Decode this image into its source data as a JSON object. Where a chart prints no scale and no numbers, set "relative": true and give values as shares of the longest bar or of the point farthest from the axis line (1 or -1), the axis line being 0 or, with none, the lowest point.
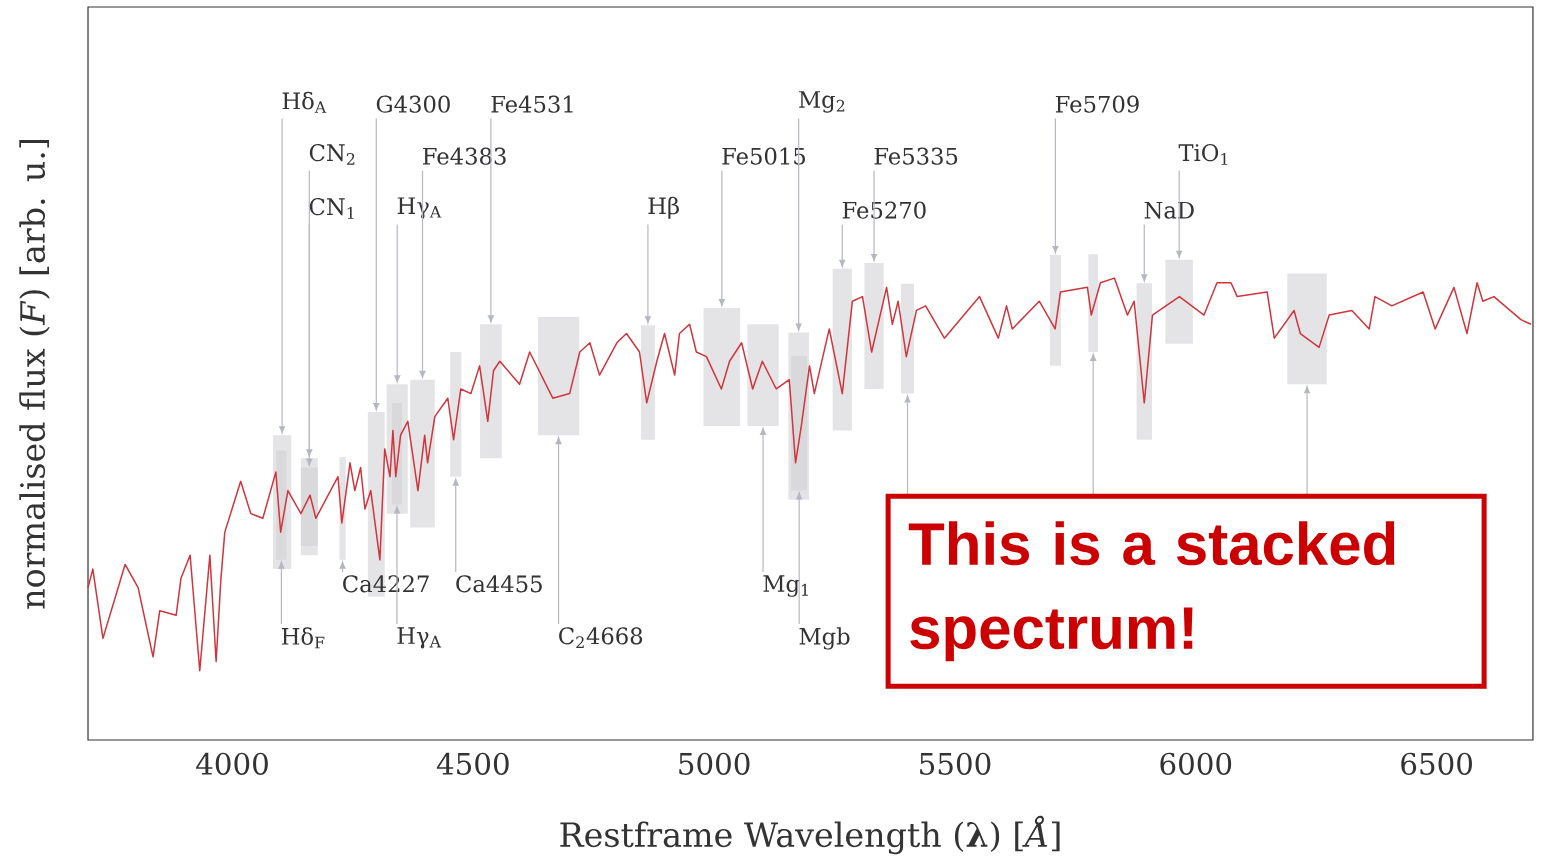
{
  "chart_data": {
    "type": "line",
    "relative": true,
    "xlabel": "Restframe Wavelength (**λ**) [*Å*]",
    "ylabel": "normalised flux (*F*) [arb. u.]",
    "xlim": [
      3700,
      6700
    ],
    "xticks": [
      4000,
      4500,
      5000,
      5500,
      6000,
      6500
    ],
    "x": [
      3700,
      3710,
      3731,
      3777,
      3804,
      3835,
      3849,
      3883,
      3893,
      3912,
      3932,
      3953,
      3966,
      3976,
      3984,
      4005,
      4017,
      4038,
      4063,
      4090,
      4100,
      4115,
      4142,
      4161,
      4173,
      4219,
      4227,
      4244,
      4254,
      4266,
      4275,
      4287,
      4306,
      4316,
      4327,
      4333,
      4339,
      4349,
      4364,
      4385,
      4399,
      4405,
      4420,
      4447,
      4459,
      4474,
      4495,
      4513,
      4530,
      4542,
      4555,
      4596,
      4617,
      4665,
      4700,
      4721,
      4742,
      4762,
      4798,
      4818,
      4845,
      4860,
      4881,
      4897,
      4918,
      4928,
      4949,
      4963,
      4984,
      5015,
      5032,
      5057,
      5080,
      5100,
      5129,
      5156,
      5169,
      5181,
      5198,
      5208,
      5239,
      5266,
      5287,
      5308,
      5327,
      5358,
      5370,
      5382,
      5399,
      5420,
      5439,
      5478,
      5551,
      5590,
      5607,
      5619,
      5675,
      5708,
      5719,
      5775,
      5783,
      5802,
      5831,
      5858,
      5872,
      5893,
      5910,
      5966,
      6017,
      6044,
      6073,
      6086,
      6148,
      6163,
      6204,
      6217,
      6256,
      6277,
      6324,
      6360,
      6372,
      6407,
      6472,
      6497,
      6536,
      6563,
      6584,
      6596,
      6619,
      6675,
      6696
    ],
    "series": [
      {
        "color": "#d0343c",
        "values": [
          0.33,
          0.37,
          0.22,
          0.38,
          0.33,
          0.18,
          0.28,
          0.27,
          0.35,
          0.4,
          0.15,
          0.4,
          0.17,
          0.35,
          0.45,
          0.52,
          0.56,
          0.49,
          0.48,
          0.58,
          0.45,
          0.54,
          0.49,
          0.53,
          0.48,
          0.57,
          0.47,
          0.6,
          0.54,
          0.59,
          0.5,
          0.54,
          0.39,
          0.63,
          0.57,
          0.67,
          0.57,
          0.66,
          0.69,
          0.54,
          0.66,
          0.6,
          0.7,
          0.74,
          0.65,
          0.76,
          0.75,
          0.81,
          0.69,
          0.8,
          0.82,
          0.77,
          0.84,
          0.74,
          0.75,
          0.84,
          0.86,
          0.79,
          0.86,
          0.88,
          0.84,
          0.73,
          0.82,
          0.88,
          0.79,
          0.88,
          0.9,
          0.84,
          0.83,
          0.76,
          0.82,
          0.86,
          0.76,
          0.82,
          0.76,
          0.78,
          0.6,
          0.68,
          0.81,
          0.75,
          0.89,
          0.75,
          0.95,
          0.96,
          0.84,
          0.98,
          0.9,
          0.95,
          0.83,
          0.93,
          0.94,
          0.87,
          0.96,
          0.87,
          0.94,
          0.89,
          0.95,
          0.89,
          0.97,
          0.98,
          0.92,
          0.99,
          1.0,
          0.92,
          0.95,
          0.73,
          0.92,
          0.96,
          0.92,
          0.99,
          0.99,
          0.96,
          0.97,
          0.87,
          0.93,
          0.88,
          0.85,
          0.92,
          0.93,
          0.89,
          0.96,
          0.94,
          0.97,
          0.89,
          0.98,
          0.88,
          0.99,
          0.95,
          0.96,
          0.91,
          0.9
        ]
      }
    ],
    "bands": [
      {
        "axis": "x",
        "from": 4084,
        "to": 4122,
        "label": "Hδ$_{A}$",
        "color": "#e4e4e7"
      },
      {
        "axis": "x",
        "from": 4091,
        "to": 4112,
        "label": "Hδ$_{F}$",
        "color": "#d9d9dc"
      },
      {
        "axis": "x",
        "from": 4142,
        "to": 4177,
        "label": "CN$_{2}$",
        "color": "#e4e4e7"
      },
      {
        "axis": "x",
        "from": 4142,
        "to": 4177,
        "label": "CN$_{1}$",
        "color": "#d9d9dc"
      },
      {
        "axis": "x",
        "from": 4222,
        "to": 4235,
        "label": "Ca4227",
        "color": "#e4e4e7"
      },
      {
        "axis": "x",
        "from": 4281,
        "to": 4316,
        "label": "G4300",
        "color": "#e4e4e7"
      },
      {
        "axis": "x",
        "from": 4320,
        "to": 4364,
        "label": "Hγ$_{A}$",
        "color": "#e4e4e7"
      },
      {
        "axis": "x",
        "from": 4331,
        "to": 4352,
        "label": "Hγ$_{A}$",
        "color": "#d9d9dc"
      },
      {
        "axis": "x",
        "from": 4369,
        "to": 4420,
        "label": "Fe4383",
        "color": "#e4e4e7"
      },
      {
        "axis": "x",
        "from": 4452,
        "to": 4475,
        "label": "Ca4455",
        "color": "#e4e4e7"
      },
      {
        "axis": "x",
        "from": 4514,
        "to": 4559,
        "label": "Fe4531",
        "color": "#e4e4e7"
      },
      {
        "axis": "x",
        "from": 4634,
        "to": 4720,
        "label": "C$_{2}$4668",
        "color": "#e4e4e7"
      },
      {
        "axis": "x",
        "from": 4848,
        "to": 4877,
        "label": "Hβ",
        "color": "#e4e4e7"
      },
      {
        "axis": "x",
        "from": 4978,
        "to": 5054,
        "label": "Fe5015",
        "color": "#e4e4e7"
      },
      {
        "axis": "x",
        "from": 5069,
        "to": 5134,
        "label": "Mg$_{1}$",
        "color": "#e4e4e7"
      },
      {
        "axis": "x",
        "from": 5154,
        "to": 5197,
        "label": "Mg$_{2}$",
        "color": "#e4e4e7"
      },
      {
        "axis": "x",
        "from": 5160,
        "to": 5193,
        "label": "Mgb",
        "color": "#d9d9dc"
      },
      {
        "axis": "x",
        "from": 5246,
        "to": 5286,
        "label": "Fe5270",
        "color": "#e4e4e7"
      },
      {
        "axis": "x",
        "from": 5312,
        "to": 5352,
        "label": "Fe5335",
        "color": "#e4e4e7"
      },
      {
        "axis": "x",
        "from": 5388,
        "to": 5415,
        "color": "#e4e4e7"
      },
      {
        "axis": "x",
        "from": 5697,
        "to": 5720,
        "label": "Fe5709",
        "color": "#e4e4e7"
      },
      {
        "axis": "x",
        "from": 5777,
        "to": 5797,
        "color": "#e4e4e7"
      },
      {
        "axis": "x",
        "from": 5877,
        "to": 5909,
        "label": "NaD",
        "color": "#e4e4e7"
      },
      {
        "axis": "x",
        "from": 5937,
        "to": 5994,
        "label": "TiO$_{1}$",
        "color": "#e4e4e7"
      },
      {
        "axis": "x",
        "from": 6190,
        "to": 6272,
        "color": "#e4e4e7"
      }
    ],
    "annotations": [
      "This is a stacked spectrum!"
    ]
  }
}
